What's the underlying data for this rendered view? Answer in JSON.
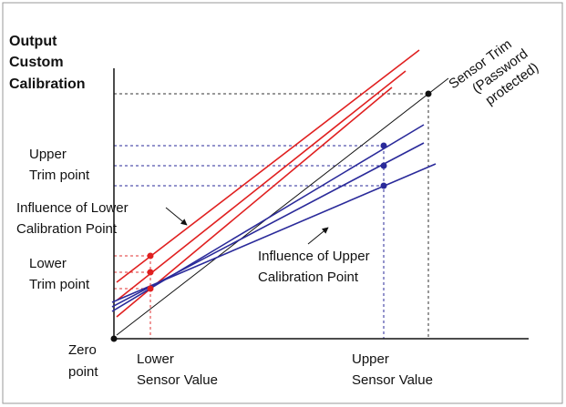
{
  "y_axis_label": [
    "Output",
    "Custom",
    "Calibration"
  ],
  "sensor_trim_label": [
    "Sensor Trim",
    "(Password",
    "protected)"
  ],
  "upper_trim_point": [
    "Upper",
    "Trim point"
  ],
  "influence_lower": [
    "Influence of Lower",
    "Calibration Point"
  ],
  "lower_trim_point": [
    "Lower",
    "Trim point"
  ],
  "influence_upper": [
    "Influence of Upper",
    "Calibration Point"
  ],
  "zero_point": [
    "Zero",
    "point"
  ],
  "lower_sensor_value": [
    "Lower",
    "Sensor Value"
  ],
  "upper_sensor_value": [
    "Upper",
    "Sensor Value"
  ]
}
